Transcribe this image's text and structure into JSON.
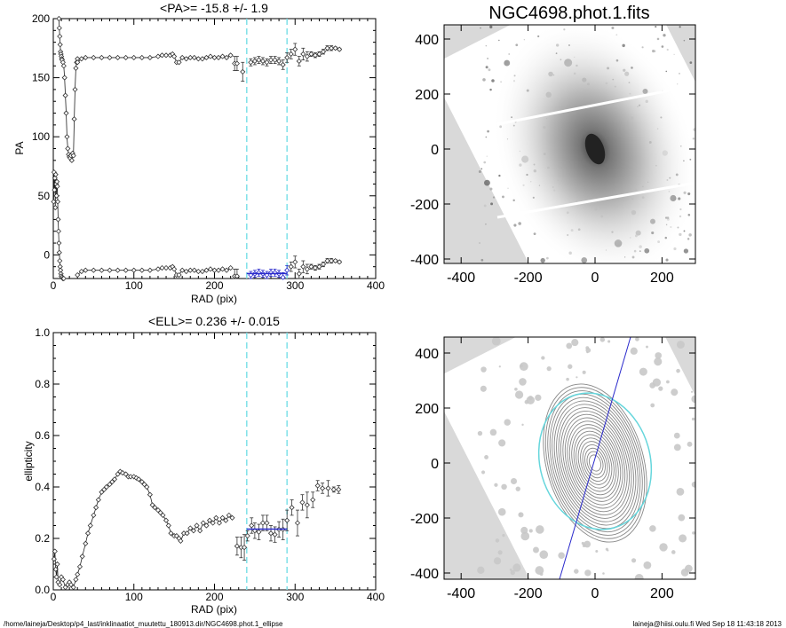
{
  "footer": {
    "path": "/home/laineja/Desktop/p4_last/inklinaatiot_muutettu_180913.dir/NGC4698.phot.1_ellipse",
    "stamp": "laineja@hiisi.oulu.fi  Wed Sep 18 11:43:18 2013"
  },
  "colors": {
    "fit": "#2a2acc",
    "range": "#7fe0e8",
    "points": "#333333"
  },
  "chart_data": [
    {
      "type": "scatter",
      "title": "<PA>= -15.8 +/-   1.9",
      "xlabel": "RAD (pix)",
      "ylabel": "PA",
      "xlim": [
        0,
        400
      ],
      "ylim": [
        -20,
        200
      ],
      "xticks": [
        "0",
        "100",
        "200",
        "300",
        "400"
      ],
      "yticks": [
        "0",
        "50",
        "100",
        "150",
        "200"
      ],
      "fit_range": [
        240,
        290
      ],
      "fit_value": -15.8,
      "series": [
        {
          "name": "PA inner",
          "x": [
            0.5,
            1,
            1.5,
            2,
            2.5,
            3,
            3.5,
            4,
            4.5,
            5,
            5.5,
            6,
            6.5,
            7,
            7.5,
            8,
            8.5,
            9,
            9.5,
            10,
            11,
            12,
            13
          ],
          "y": [
            45,
            70,
            55,
            65,
            40,
            68,
            60,
            50,
            62,
            58,
            45,
            30,
            20,
            10,
            2,
            -5,
            -10,
            -13,
            -16,
            -18,
            -19,
            -20,
            -20
          ]
        },
        {
          "name": "PA upper inner",
          "x": [
            7,
            7.5,
            8,
            8.5,
            9,
            9.5,
            10,
            10.5,
            11,
            12,
            13,
            14,
            15,
            16,
            17,
            18,
            19,
            20,
            21,
            22,
            23,
            24,
            25,
            26,
            27,
            28,
            29,
            30
          ],
          "y": [
            200,
            192,
            185,
            178,
            172,
            170,
            168,
            166,
            165,
            163,
            160,
            150,
            135,
            120,
            100,
            90,
            85,
            83,
            82,
            84,
            80,
            86,
            84,
            115,
            140,
            158,
            163,
            166
          ]
        },
        {
          "name": "PA lower",
          "x": [
            30,
            35,
            40,
            50,
            60,
            70,
            80,
            90,
            100,
            110,
            120,
            130,
            135,
            140,
            145,
            148,
            150,
            153,
            156,
            160,
            165,
            170,
            175,
            180,
            185,
            190,
            195,
            200,
            205,
            210,
            215,
            220
          ],
          "y": [
            -17,
            -14,
            -13,
            -13,
            -13,
            -13,
            -13,
            -13,
            -13,
            -13,
            -13,
            -12,
            -11,
            -11,
            -11,
            -10,
            -12,
            -17,
            -17,
            -13,
            -14,
            -13,
            -13,
            -14,
            -14,
            -13,
            -12,
            -13,
            -13,
            -12,
            -13,
            -11
          ]
        },
        {
          "name": "PA outer",
          "x": [
            225,
            228,
            235,
            245,
            250,
            255,
            260,
            265,
            270,
            275,
            280,
            285,
            290,
            295,
            300,
            305,
            310,
            315,
            320,
            325,
            330,
            335,
            340,
            345,
            350,
            355
          ],
          "y": [
            -18,
            -18,
            -25,
            -17,
            -16,
            -15,
            -16,
            -17,
            -15,
            -15,
            -16,
            -19,
            -13,
            -10,
            -6,
            -16,
            -10,
            -12,
            -10,
            -11,
            -10,
            -8,
            -5,
            -5,
            -5,
            -6
          ],
          "err": [
            6,
            6,
            8,
            3,
            3,
            3,
            3,
            3,
            3,
            3,
            3,
            4,
            4,
            4,
            5,
            4,
            5,
            4,
            2,
            2,
            2,
            2,
            2,
            2,
            1,
            1
          ]
        }
      ]
    },
    {
      "type": "scatter",
      "title": "<ELL>= 0.236 +/-  0.015",
      "xlabel": "RAD (pix)",
      "ylabel": "ellipticity",
      "xlim": [
        0,
        400
      ],
      "ylim": [
        0,
        1
      ],
      "xticks": [
        "0",
        "100",
        "200",
        "300",
        "400"
      ],
      "yticks": [
        "0.0",
        "0.2",
        "0.4",
        "0.6",
        "0.8",
        "1.0"
      ],
      "fit_range": [
        240,
        290
      ],
      "fit_value": 0.236,
      "series": [
        {
          "name": "ELL",
          "x": [
            1,
            2,
            3,
            4,
            5,
            6,
            8,
            10,
            12,
            15,
            18,
            20,
            22,
            25,
            28,
            30,
            33,
            36,
            40,
            43,
            46,
            50,
            53,
            56,
            60,
            63,
            66,
            70,
            73,
            76,
            80,
            83,
            86,
            90,
            93,
            96,
            100,
            103,
            106,
            110,
            113,
            116,
            120,
            123,
            126,
            130,
            133,
            136,
            140,
            143,
            146,
            150,
            153,
            156,
            158,
            162,
            166,
            170,
            174,
            178,
            182,
            186,
            190,
            194,
            198,
            202,
            206,
            210,
            214,
            218,
            222
          ],
          "y": [
            0.12,
            0.15,
            0.08,
            0.05,
            0.1,
            0.03,
            0.02,
            0.05,
            0.04,
            0.01,
            0.02,
            0.03,
            0.02,
            0.01,
            0.04,
            0.06,
            0.09,
            0.13,
            0.18,
            0.22,
            0.25,
            0.29,
            0.32,
            0.35,
            0.38,
            0.39,
            0.4,
            0.41,
            0.42,
            0.43,
            0.45,
            0.46,
            0.455,
            0.45,
            0.44,
            0.44,
            0.44,
            0.435,
            0.43,
            0.42,
            0.41,
            0.4,
            0.37,
            0.33,
            0.32,
            0.31,
            0.3,
            0.29,
            0.27,
            0.25,
            0.22,
            0.21,
            0.21,
            0.2,
            0.19,
            0.22,
            0.22,
            0.24,
            0.23,
            0.25,
            0.23,
            0.26,
            0.25,
            0.27,
            0.26,
            0.28,
            0.26,
            0.28,
            0.27,
            0.29,
            0.28
          ]
        },
        {
          "name": "ELL outer",
          "x": [
            228,
            233,
            237,
            241,
            246,
            250,
            255,
            260,
            265,
            270,
            275,
            280,
            285,
            290,
            296,
            303,
            309,
            315,
            322,
            328,
            334,
            341,
            348,
            354
          ],
          "y": [
            0.17,
            0.165,
            0.165,
            0.21,
            0.25,
            0.23,
            0.225,
            0.26,
            0.26,
            0.22,
            0.215,
            0.235,
            0.235,
            0.27,
            0.32,
            0.26,
            0.34,
            0.33,
            0.35,
            0.405,
            0.395,
            0.395,
            0.39,
            0.39
          ],
          "err": [
            0.035,
            0.04,
            0.05,
            0.02,
            0.03,
            0.03,
            0.03,
            0.03,
            0.03,
            0.03,
            0.03,
            0.03,
            0.04,
            0.04,
            0.03,
            0.05,
            0.03,
            0.05,
            0.03,
            0.02,
            0.02,
            0.03,
            0.01,
            0.015
          ]
        }
      ]
    },
    {
      "type": "heatmap",
      "title": "NGC4698.phot.1.fits",
      "xlim": [
        -400,
        350
      ],
      "ylim": [
        -420,
        460
      ],
      "xticks": [
        "-400",
        "-200",
        "0",
        "200"
      ],
      "yticks": [
        "400",
        "200",
        "0",
        "-200",
        "-400"
      ]
    },
    {
      "type": "heatmap",
      "title": "",
      "xlim": [
        -400,
        350
      ],
      "ylim": [
        -420,
        460
      ],
      "xticks": [
        "-400",
        "-200",
        "0",
        "200"
      ],
      "yticks": [
        "400",
        "200",
        "0",
        "-200",
        "-400"
      ]
    }
  ]
}
